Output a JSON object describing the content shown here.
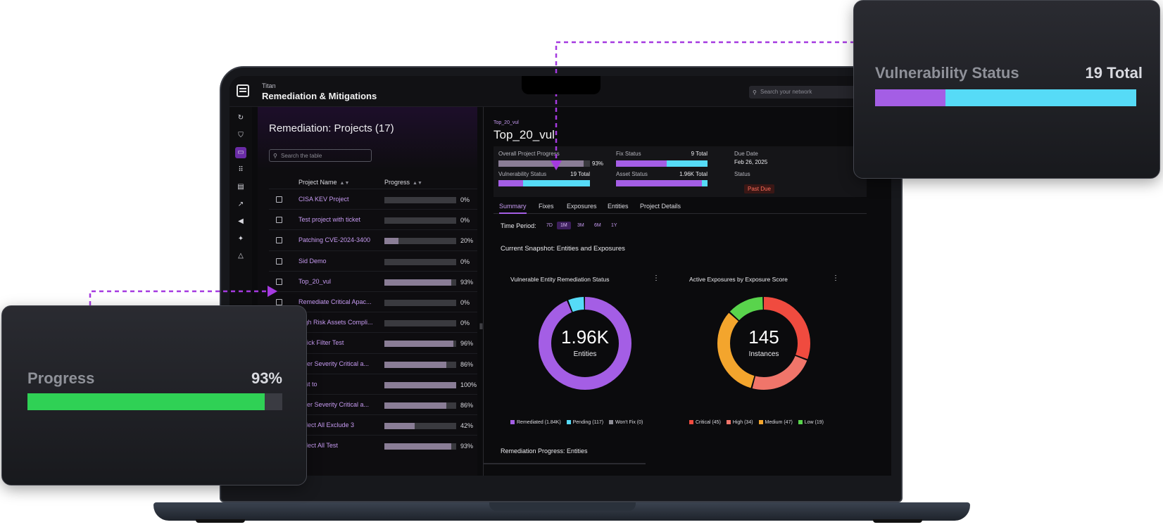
{
  "colors": {
    "accent": "#a45ee5",
    "cyan": "#56dbf7",
    "green": "#2fd155",
    "red": "#f04b3f",
    "salmon": "#f0756a",
    "orange": "#f3a52d",
    "lime": "#59d44c",
    "purple": "#a45ee5"
  },
  "app": {
    "small_title": "Titan",
    "title": "Remediation & Mitigations",
    "search_placeholder": "Search your network"
  },
  "sidebar": {
    "icons": [
      "refresh-icon",
      "shield-icon",
      "devices-icon",
      "grid-icon",
      "document-icon",
      "trend-icon",
      "megaphone-icon",
      "sparkle-icon",
      "warning-icon"
    ]
  },
  "left": {
    "title": "Remediation: Projects (17)",
    "search_placeholder": "Search the table",
    "col_name": "Project Name",
    "col_progress": "Progress",
    "rows": [
      {
        "name": "CISA KEV Project",
        "pct": "0%",
        "value": 0
      },
      {
        "name": "Test project with ticket",
        "pct": "0%",
        "value": 0
      },
      {
        "name": "Patching CVE-2024-3400",
        "pct": "20%",
        "value": 20
      },
      {
        "name": "Sid Demo",
        "pct": "0%",
        "value": 0
      },
      {
        "name": "Top_20_vul",
        "pct": "93%",
        "value": 93
      },
      {
        "name": "Remediate Critical Apac...",
        "pct": "0%",
        "value": 0
      },
      {
        "name": "High Risk Assets Compli...",
        "pct": "0%",
        "value": 0
      },
      {
        "name": "Quick Filter Test",
        "pct": "96%",
        "value": 96
      },
      {
        "name": "Filter Severity Critical a...",
        "pct": "86%",
        "value": 86
      },
      {
        "name": "Test to",
        "pct": "100%",
        "value": 100
      },
      {
        "name": "Filter Severity Critical a...",
        "pct": "86%",
        "value": 86
      },
      {
        "name": "Select All Exclude 3",
        "pct": "42%",
        "value": 42
      },
      {
        "name": "Select All Test",
        "pct": "93%",
        "value": 93
      }
    ]
  },
  "right": {
    "breadcrumb": "Top_20_vul",
    "title": "Top_20_vul",
    "overall_label": "Overall Project Progress",
    "overall_pct": "93%",
    "overall_value": 93,
    "vuln_label": "Vulnerability Status",
    "vuln_total": "19 Total",
    "vuln_split": [
      0.27,
      0.73
    ],
    "fix_label": "Fix Status",
    "fix_total": "9 Total",
    "fix_split": [
      0.55,
      0.45
    ],
    "asset_label": "Asset Status",
    "asset_total": "1.96K Total",
    "asset_split": [
      0.94,
      0.06
    ],
    "due_label": "Due Date",
    "due_value": "Feb 26, 2025",
    "status_label": "Status",
    "status_value": "Past Due",
    "tabs": [
      "Summary",
      "Fixes",
      "Exposures",
      "Entities",
      "Project Details"
    ],
    "time_label": "Time Period:",
    "periods": [
      "7D",
      "1M",
      "3M",
      "6M",
      "1Y"
    ],
    "snapshot_title": "Current Snapshot: Entities and Exposures",
    "card1": {
      "title": "Vulnerable Entity Remediation Status",
      "big": "1.96K",
      "small": "Entities",
      "legend": [
        "Remediated (1.84K)",
        "Pending (117)",
        "Won't Fix (0)"
      ]
    },
    "card2": {
      "title": "Active Exposures by Exposure Score",
      "big": "145",
      "small": "Instances",
      "legend": [
        "Critical (45)",
        "High (34)",
        "Medium (47)",
        "Low (19)"
      ]
    },
    "remediation_progress": "Remediation Progress: Entities"
  },
  "callout_progress": {
    "title": "Progress",
    "value": "93%",
    "fraction": 0.93
  },
  "callout_vuln": {
    "title": "Vulnerability Status",
    "value": "19 Total",
    "split": [
      0.27,
      0.73
    ]
  },
  "chart_data": [
    {
      "type": "pie",
      "title": "Vulnerable Entity Remediation Status",
      "categories": [
        "Remediated",
        "Pending",
        "Won't Fix"
      ],
      "values": [
        1840,
        117,
        0
      ]
    },
    {
      "type": "pie",
      "title": "Active Exposures by Exposure Score",
      "categories": [
        "Critical",
        "High",
        "Medium",
        "Low"
      ],
      "values": [
        45,
        34,
        47,
        19
      ]
    }
  ]
}
